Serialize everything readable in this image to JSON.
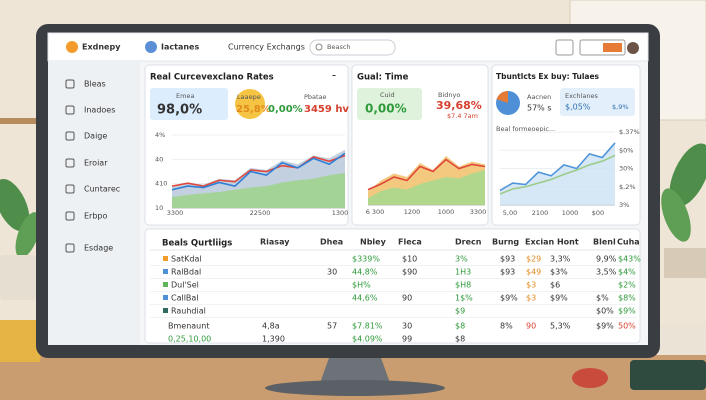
{
  "brand": "Exdnepy",
  "header": {
    "app": "Iactanes",
    "title": "Currency Exchangs",
    "search": "Beasch"
  },
  "sidebar": [
    "Bleas",
    "Inadoes",
    "Daige",
    "Eroiar",
    "Cuntarec",
    "Erbpo",
    "Esdage"
  ],
  "cards": [
    {
      "title": "Real Curcevexclano Rates",
      "stats": [
        {
          "label": "Emea",
          "value": "98,0%"
        },
        {
          "label": "Laaepe",
          "value": "25,8%"
        },
        {
          "value": "0,00%"
        },
        {
          "label": "Pbatae",
          "value": "3459 hv"
        }
      ],
      "chart": {
        "ylabels": [
          "4%",
          "40",
          "410",
          "10"
        ],
        "xlabels": [
          "3300",
          "22500",
          "1300"
        ],
        "ylim": [
          0,
          100
        ],
        "series": [
          {
            "color": "#b9c8da",
            "fill": true,
            "values": [
              30,
              35,
              32,
              40,
              38,
              55,
              52,
              65,
              60,
              72,
              68,
              80
            ]
          },
          {
            "color": "#9fd48a",
            "fill": true,
            "values": [
              15,
              18,
              20,
              22,
              25,
              28,
              30,
              35,
              38,
              40,
              45,
              48
            ]
          },
          {
            "color": "#e0473a",
            "fill": false,
            "values": [
              30,
              34,
              30,
              38,
              36,
              52,
              50,
              58,
              55,
              70,
              64,
              72
            ]
          },
          {
            "color": "#2f7fd6",
            "fill": false,
            "values": [
              25,
              30,
              28,
              35,
              30,
              50,
              45,
              62,
              55,
              68,
              60,
              75
            ]
          }
        ]
      }
    },
    {
      "title": "Gual: Time",
      "stats": [
        {
          "label": "Cuid",
          "value": "0,00%"
        },
        {
          "label": "Bidnyo",
          "value": "39,68%",
          "note": "$7.4 7am"
        }
      ],
      "chart": {
        "xlabels": [
          "6 300",
          "1200",
          "1000",
          "3300"
        ],
        "ylim": [
          0,
          100
        ],
        "series": [
          {
            "color": "#f0c068",
            "fill": true,
            "values": [
              20,
              35,
              45,
              40,
              60,
              50,
              70,
              55,
              62,
              58
            ]
          },
          {
            "color": "#a6d98f",
            "fill": true,
            "values": [
              10,
              20,
              25,
              22,
              30,
              35,
              40,
              38,
              45,
              50
            ]
          },
          {
            "color": "#e0473a",
            "fill": false,
            "values": [
              22,
              30,
              40,
              35,
              55,
              48,
              65,
              52,
              58,
              55
            ]
          }
        ]
      }
    },
    {
      "title": "Tbuntlcts Ex buy: Tulaes",
      "stats": [
        {
          "label": "Aacnen",
          "value": "57% s"
        },
        {
          "label": "Exchlanes",
          "value": "$,05%",
          "note": "$,9%"
        }
      ],
      "subtitle": "Beal formeoepic...",
      "chart": {
        "ylabels": [
          "$.37%",
          "$0%",
          "30%",
          "$,2%",
          "3%"
        ],
        "xlabels": [
          "5,00",
          "2100",
          "1000",
          "$00"
        ],
        "ylim": [
          0,
          100
        ],
        "series": [
          {
            "color": "#cfe3f5",
            "fill": true,
            "values": [
              20,
              30,
              28,
              45,
              40,
              55,
              50,
              70,
              65,
              85
            ]
          },
          {
            "color": "#4f95d9",
            "fill": false,
            "values": [
              20,
              30,
              28,
              45,
              40,
              55,
              50,
              70,
              65,
              85
            ]
          },
          {
            "color": "#9ccc8a",
            "fill": false,
            "values": [
              15,
              22,
              25,
              30,
              35,
              42,
              48,
              55,
              60,
              68
            ]
          }
        ]
      }
    }
  ],
  "table": {
    "title": "Beals Qurtliigs",
    "headers": [
      "Riasay",
      "Dhea",
      "Nbley",
      "Fleca",
      "Drecn",
      "Burng",
      "Excian Hont",
      "Blenl",
      "Cuha"
    ],
    "rows": [
      [
        "SatKdal",
        null,
        null,
        "$339%",
        "$10",
        "3%",
        "$93",
        "$29",
        "3,3%",
        "9,9%",
        "$43%"
      ],
      [
        "RalBdal",
        null,
        "30",
        "44,8%",
        "$90",
        "1H3",
        "$93",
        "$49",
        "$3%",
        "3,5%",
        "$4%"
      ],
      [
        "Dul'Sel",
        null,
        null,
        "$H%",
        null,
        "$H8",
        null,
        "$3",
        "$6",
        null,
        "$2%"
      ],
      [
        "CallBal",
        null,
        null,
        "44,6%",
        "90",
        "1$%",
        "$9%",
        "$3",
        "$9%",
        "$%",
        "$8%"
      ],
      [
        "Rauhdial",
        null,
        null,
        null,
        null,
        "$9",
        null,
        null,
        null,
        "$0%",
        "$9%"
      ]
    ],
    "footer": [
      [
        "Bmenaunt",
        "4,8a",
        "57",
        "$7.81%",
        "30",
        "$8",
        "8%",
        "90",
        "5,3%",
        "$9%",
        "50%"
      ],
      [
        "0,25,10,00",
        "1,390",
        null,
        "$4.09%",
        "99",
        "$8",
        null,
        null,
        null,
        null,
        null
      ]
    ]
  }
}
